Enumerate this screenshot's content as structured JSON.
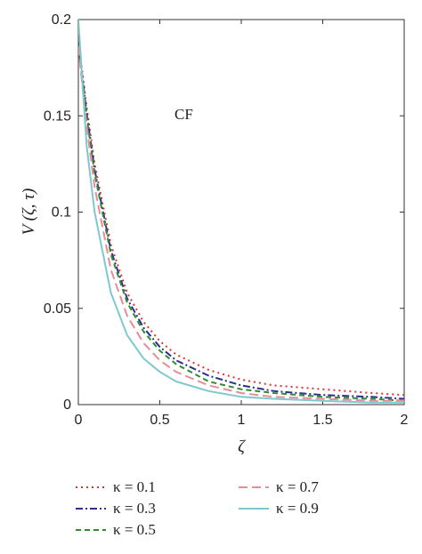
{
  "chart_data": {
    "type": "line",
    "title": "",
    "xlabel": "ζ",
    "ylabel": "V (ζ, τ)",
    "xlim": [
      0,
      2
    ],
    "ylim": [
      0,
      0.2
    ],
    "xticks": [
      0,
      0.5,
      1,
      1.5,
      2
    ],
    "xtick_labels": [
      "0",
      "0.5",
      "1",
      "1.5",
      "2"
    ],
    "yticks": [
      0,
      0.05,
      0.1,
      0.15,
      0.2
    ],
    "ytick_labels": [
      "0",
      "0.05",
      "0.1",
      "0.15",
      "0.2"
    ],
    "grid": false,
    "legend_position": "bottom",
    "annotation": "CF",
    "x": [
      0,
      0.05,
      0.1,
      0.2,
      0.3,
      0.4,
      0.5,
      0.6,
      0.8,
      1.0,
      1.2,
      1.5,
      1.8,
      2.0
    ],
    "series": [
      {
        "name": "κ = 0.1",
        "color": "#e0332f",
        "style": "dotted",
        "values": [
          0.19,
          0.155,
          0.125,
          0.083,
          0.058,
          0.043,
          0.033,
          0.026,
          0.018,
          0.013,
          0.01,
          0.008,
          0.006,
          0.005
        ]
      },
      {
        "name": "κ = 0.3",
        "color": "#2c2f8f",
        "style": "dashdot",
        "values": [
          0.188,
          0.152,
          0.122,
          0.08,
          0.055,
          0.04,
          0.03,
          0.023,
          0.015,
          0.01,
          0.007,
          0.005,
          0.004,
          0.003
        ]
      },
      {
        "name": "κ = 0.5",
        "color": "#2e8b2e",
        "style": "dashed",
        "values": [
          0.187,
          0.15,
          0.12,
          0.078,
          0.053,
          0.038,
          0.028,
          0.021,
          0.012,
          0.008,
          0.006,
          0.004,
          0.003,
          0.002
        ]
      },
      {
        "name": "κ = 0.7",
        "color": "#e88a9a",
        "style": "longdash",
        "values": [
          0.186,
          0.145,
          0.113,
          0.07,
          0.046,
          0.032,
          0.023,
          0.017,
          0.01,
          0.006,
          0.004,
          0.003,
          0.002,
          0.002
        ]
      },
      {
        "name": "κ = 0.9",
        "color": "#7ec8d0",
        "style": "solid",
        "values": [
          0.2,
          0.135,
          0.1,
          0.058,
          0.036,
          0.024,
          0.017,
          0.012,
          0.007,
          0.004,
          0.003,
          0.002,
          0.001,
          0.001
        ]
      }
    ]
  }
}
